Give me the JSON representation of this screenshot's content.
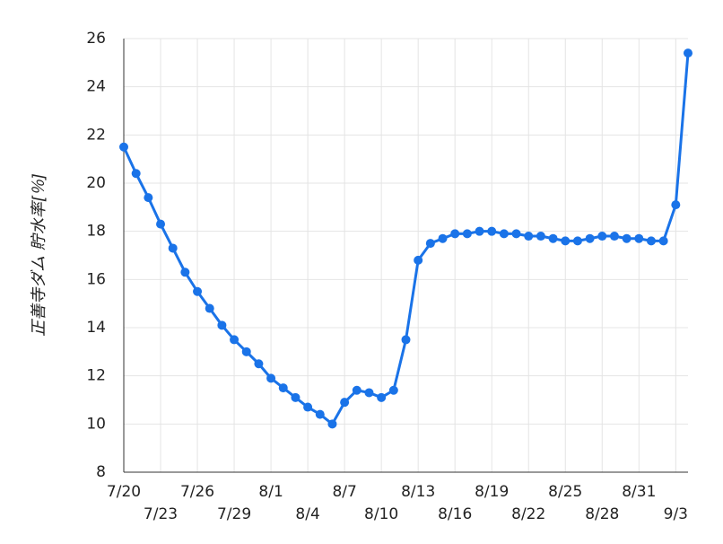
{
  "chart_data": {
    "type": "line",
    "y_label": "正善寺ダム 貯水率[％]",
    "categories": [
      "7/20",
      null,
      null,
      "7/23",
      null,
      null,
      "7/26",
      null,
      null,
      "7/29",
      null,
      null,
      "8/1",
      null,
      null,
      "8/4",
      null,
      null,
      "8/7",
      null,
      null,
      "8/10",
      null,
      null,
      "8/13",
      null,
      null,
      "8/16",
      null,
      null,
      "8/19",
      null,
      null,
      "8/22",
      null,
      null,
      "8/25",
      null,
      null,
      "8/28",
      null,
      null,
      "8/31",
      null,
      null,
      "9/3",
      null
    ],
    "series": [
      {
        "color": "#1a73e8",
        "values": [
          21.5,
          20.4,
          19.4,
          18.3,
          17.3,
          16.3,
          15.5,
          14.8,
          14.1,
          13.5,
          13.0,
          12.5,
          11.9,
          11.5,
          11.1,
          10.7,
          10.4,
          10.0,
          10.9,
          11.4,
          11.3,
          11.1,
          11.4,
          13.5,
          16.8,
          17.5,
          17.7,
          17.9,
          17.9,
          18.0,
          18.0,
          17.9,
          17.9,
          17.8,
          17.8,
          17.7,
          17.6,
          17.6,
          17.7,
          17.8,
          17.8,
          17.7,
          17.7,
          17.6,
          17.6,
          19.1,
          25.4
        ]
      }
    ],
    "ylim": [
      8,
      26
    ],
    "yticks": [
      8,
      10,
      12,
      14,
      16,
      18,
      20,
      22,
      24,
      26
    ],
    "grid": true
  }
}
